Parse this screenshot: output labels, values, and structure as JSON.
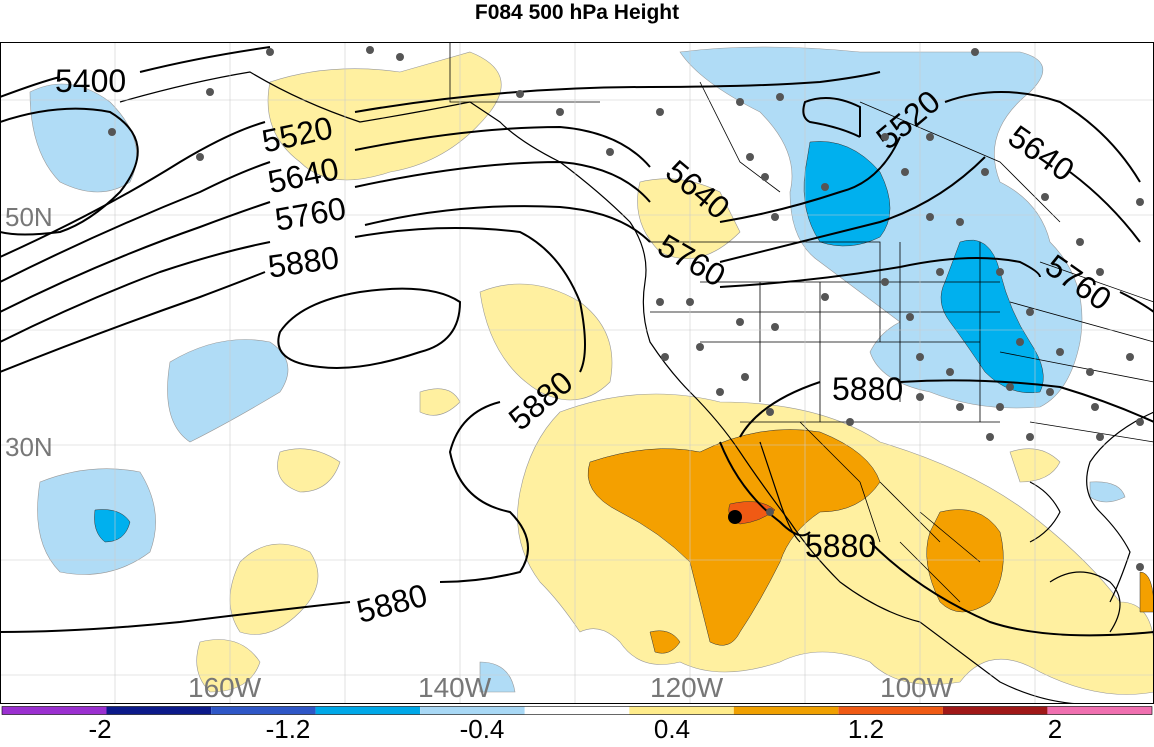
{
  "title": "F084 500 hPa Height",
  "lon_labels": [
    "160W",
    "140W",
    "120W",
    "100W"
  ],
  "lat_labels": [
    "50N",
    "30N"
  ],
  "contour_labels": [
    "5400",
    "5520",
    "5640",
    "5760",
    "5880"
  ],
  "colorbar": {
    "tick_labels": [
      "-2",
      "-1.2",
      "-0.4",
      "0.4",
      "1.2",
      "2"
    ],
    "colors": [
      "#9b30d0",
      "#0c1a8a",
      "#2f57c7",
      "#00a8e8",
      "#a8d8f5",
      "#ffffff",
      "#ffec8b",
      "#f0a000",
      "#f05a14",
      "#a01818",
      "#f070b0"
    ]
  },
  "fill_colors": {
    "light_blue": "#b0dcf6",
    "blue": "#00b0ee",
    "light_yellow": "#fff0a0",
    "orange": "#f4a000",
    "red_orange": "#f05a14"
  },
  "marker": "black-dot"
}
